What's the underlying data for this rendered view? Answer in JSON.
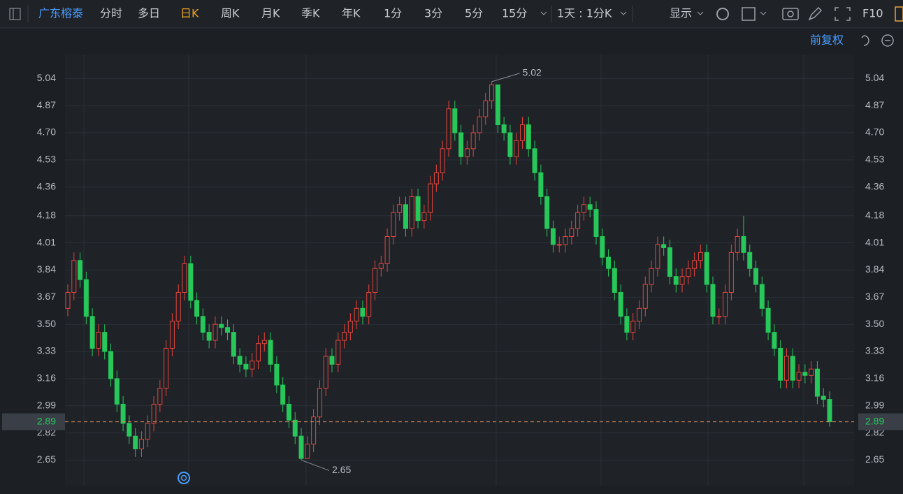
{
  "toolbar": {
    "stock": "广东榕泰",
    "periods": [
      "分时",
      "多日",
      "日K",
      "周K",
      "月K",
      "季K",
      "年K",
      "1分",
      "3分",
      "5分",
      "15分"
    ],
    "active_period": "日K",
    "multi": "1天 : 1分K",
    "display": "显示",
    "f10": "F10",
    "adjust": "前复权"
  },
  "chart_data": {
    "type": "candlestick",
    "open": [
      3.6,
      3.7,
      3.9,
      3.78,
      3.55,
      3.35,
      3.45,
      3.33,
      3.16,
      3.0,
      2.88,
      2.8,
      2.72,
      2.78,
      2.88,
      3.0,
      3.1,
      3.35,
      3.52,
      3.7,
      3.88,
      3.65,
      3.55,
      3.45,
      3.4,
      3.5,
      3.48,
      3.45,
      3.3,
      3.25,
      3.22,
      3.27,
      3.38,
      3.4,
      3.25,
      3.12,
      3.0,
      2.9,
      2.8,
      2.66,
      2.75,
      2.92,
      3.1,
      3.3,
      3.25,
      3.4,
      3.45,
      3.52,
      3.6,
      3.55,
      3.7,
      3.85,
      3.88,
      4.05,
      4.2,
      4.25,
      4.1,
      4.3,
      4.15,
      4.2,
      4.38,
      4.45,
      4.6,
      4.85,
      4.7,
      4.55,
      4.6,
      4.7,
      4.8,
      4.9,
      5.0,
      4.75,
      4.7,
      4.55,
      4.65,
      4.75,
      4.6,
      4.45,
      4.3,
      4.1,
      4.0,
      4.0,
      4.05,
      4.1,
      4.2,
      4.25,
      4.22,
      4.05,
      3.92,
      3.85,
      3.7,
      3.55,
      3.45,
      3.52,
      3.6,
      3.75,
      3.85,
      4.0,
      3.98,
      3.8,
      3.75,
      3.8,
      3.85,
      3.9,
      3.95,
      3.75,
      3.55,
      3.55,
      3.7,
      3.95,
      4.05,
      3.95,
      3.85,
      3.75,
      3.6,
      3.45,
      3.35,
      3.15,
      3.3,
      3.15,
      3.2,
      3.18,
      3.22,
      3.05,
      3.03
    ],
    "high": [
      3.75,
      3.95,
      3.95,
      3.83,
      3.6,
      3.5,
      3.5,
      3.38,
      3.21,
      3.05,
      2.93,
      2.85,
      2.83,
      2.93,
      3.05,
      3.15,
      3.4,
      3.57,
      3.75,
      3.93,
      3.93,
      3.7,
      3.6,
      3.5,
      3.55,
      3.55,
      3.53,
      3.5,
      3.35,
      3.3,
      3.32,
      3.43,
      3.45,
      3.45,
      3.3,
      3.17,
      3.05,
      2.95,
      2.85,
      2.8,
      2.97,
      3.15,
      3.35,
      3.35,
      3.45,
      3.5,
      3.57,
      3.65,
      3.65,
      3.75,
      3.9,
      3.93,
      4.1,
      4.25,
      4.3,
      4.3,
      4.35,
      4.35,
      4.25,
      4.43,
      4.5,
      4.65,
      4.9,
      4.9,
      4.75,
      4.65,
      4.75,
      4.85,
      4.95,
      5.02,
      4.99,
      4.8,
      4.75,
      4.7,
      4.8,
      4.8,
      4.65,
      4.5,
      4.35,
      4.15,
      4.05,
      4.1,
      4.15,
      4.25,
      4.3,
      4.3,
      4.27,
      4.1,
      3.97,
      3.9,
      3.75,
      3.6,
      3.57,
      3.65,
      3.8,
      3.9,
      4.05,
      4.05,
      4.03,
      3.85,
      3.85,
      3.9,
      3.95,
      4.0,
      4.0,
      3.8,
      3.6,
      3.75,
      4.0,
      4.1,
      4.18,
      4.0,
      3.9,
      3.8,
      3.65,
      3.5,
      3.4,
      3.35,
      3.35,
      3.25,
      3.25,
      3.27,
      3.27,
      3.1,
      3.08
    ],
    "low": [
      3.55,
      3.65,
      3.73,
      3.5,
      3.3,
      3.3,
      3.28,
      3.11,
      2.95,
      2.83,
      2.75,
      2.67,
      2.67,
      2.73,
      2.83,
      2.95,
      3.05,
      3.3,
      3.47,
      3.65,
      3.6,
      3.5,
      3.4,
      3.35,
      3.35,
      3.43,
      3.4,
      3.25,
      3.2,
      3.17,
      3.17,
      3.22,
      3.33,
      3.2,
      3.07,
      2.95,
      2.85,
      2.75,
      2.65,
      2.68,
      2.7,
      2.87,
      3.05,
      3.2,
      3.2,
      3.35,
      3.4,
      3.47,
      3.5,
      3.5,
      3.65,
      3.8,
      3.83,
      4.0,
      4.15,
      4.05,
      4.05,
      4.1,
      4.1,
      4.15,
      4.33,
      4.4,
      4.55,
      4.65,
      4.5,
      4.5,
      4.55,
      4.65,
      4.75,
      4.85,
      4.7,
      4.65,
      4.5,
      4.5,
      4.6,
      4.55,
      4.4,
      4.25,
      4.05,
      3.95,
      3.95,
      3.95,
      4.0,
      4.05,
      4.15,
      4.17,
      4.0,
      3.87,
      3.8,
      3.65,
      3.5,
      3.4,
      3.4,
      3.47,
      3.55,
      3.7,
      3.8,
      3.93,
      3.75,
      3.7,
      3.7,
      3.75,
      3.8,
      3.85,
      3.7,
      3.5,
      3.5,
      3.5,
      3.65,
      3.9,
      3.9,
      3.8,
      3.7,
      3.55,
      3.4,
      3.3,
      3.1,
      3.1,
      3.1,
      3.1,
      3.13,
      3.13,
      3.0,
      2.98,
      2.86
    ],
    "close": [
      3.7,
      3.9,
      3.78,
      3.55,
      3.35,
      3.45,
      3.33,
      3.16,
      3.0,
      2.88,
      2.8,
      2.72,
      2.78,
      2.88,
      3.0,
      3.1,
      3.35,
      3.52,
      3.7,
      3.88,
      3.65,
      3.55,
      3.45,
      3.4,
      3.5,
      3.48,
      3.45,
      3.3,
      3.25,
      3.22,
      3.27,
      3.38,
      3.4,
      3.25,
      3.12,
      3.0,
      2.9,
      2.8,
      2.66,
      2.75,
      2.92,
      3.1,
      3.3,
      3.25,
      3.4,
      3.45,
      3.52,
      3.6,
      3.55,
      3.7,
      3.85,
      3.88,
      4.05,
      4.2,
      4.25,
      4.1,
      4.3,
      4.15,
      4.2,
      4.38,
      4.45,
      4.6,
      4.85,
      4.7,
      4.55,
      4.6,
      4.7,
      4.8,
      4.9,
      5.0,
      4.75,
      4.7,
      4.55,
      4.65,
      4.75,
      4.6,
      4.45,
      4.3,
      4.1,
      4.0,
      4.0,
      4.05,
      4.1,
      4.2,
      4.25,
      4.22,
      4.05,
      3.92,
      3.85,
      3.7,
      3.55,
      3.45,
      3.52,
      3.6,
      3.75,
      3.85,
      4.0,
      3.98,
      3.8,
      3.75,
      3.8,
      3.85,
      3.9,
      3.95,
      3.75,
      3.55,
      3.55,
      3.7,
      3.95,
      4.05,
      3.95,
      3.85,
      3.75,
      3.6,
      3.45,
      3.35,
      3.15,
      3.3,
      3.15,
      3.2,
      3.18,
      3.22,
      3.05,
      3.03,
      2.89
    ],
    "up_color": "#e5443c",
    "down_color": "#27c75a",
    "ylim": [
      2.49,
      5.19
    ],
    "yticks": [
      2.65,
      2.82,
      2.99,
      3.16,
      3.33,
      {
        "value": 3.5,
        "label": "3.50"
      },
      3.67,
      3.84,
      4.01,
      4.18,
      4.36,
      4.53,
      {
        "value": 4.7,
        "label": "4.70"
      },
      4.87,
      5.04
    ],
    "grid": true,
    "current_price": 2.89,
    "high_annotation": 5.02,
    "low_annotation": 2.65
  }
}
